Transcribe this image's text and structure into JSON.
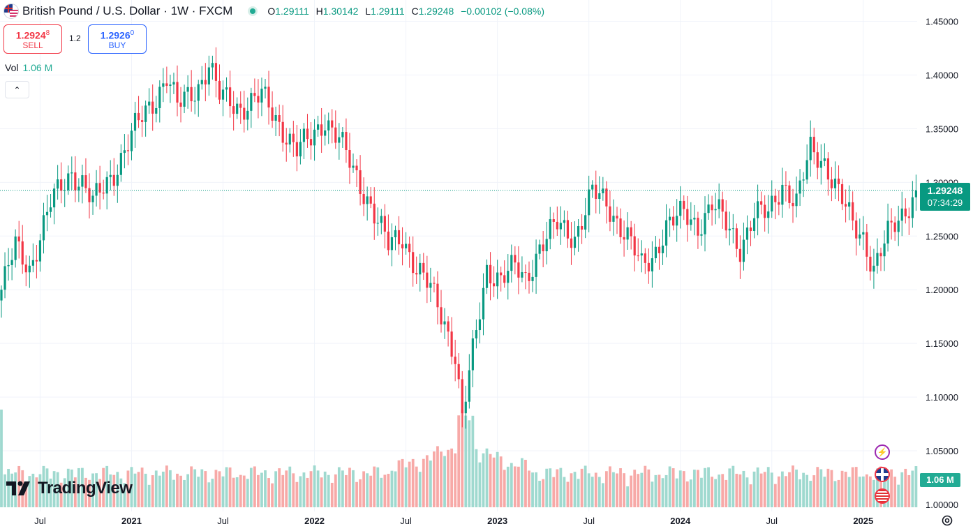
{
  "header": {
    "title": "British Pound / U.S. Dollar · 1W · FXCM",
    "ohlc": [
      {
        "label": "O",
        "value": "1.29111"
      },
      {
        "label": "H",
        "value": "1.30142"
      },
      {
        "label": "L",
        "value": "1.29111"
      },
      {
        "label": "C",
        "value": "1.29248"
      }
    ],
    "change": "−0.00102 (−0.08%)"
  },
  "trade": {
    "sell_price_main": "1.2924",
    "sell_price_sup": "8",
    "sell_label": "SELL",
    "spread": "1.2",
    "buy_price_main": "1.2926",
    "buy_price_sup": "0",
    "buy_label": "BUY"
  },
  "volume_legend": {
    "label": "Vol",
    "value": "1.06 M"
  },
  "collapse_glyph": "⌃",
  "logo_text": "TradingView",
  "last_price": {
    "price": "1.29248",
    "countdown": "07:34:29"
  },
  "last_volume": "1.06 M",
  "colors": {
    "up": "#089981",
    "down": "#f23645",
    "vol_up": "#9fd9cf",
    "vol_down": "#f7a9a7",
    "grid": "#f0f3fa"
  },
  "chart_data": {
    "type": "candlestick",
    "title": "British Pound / U.S. Dollar · 1W · FXCM",
    "y_ticks": [
      "1.45000",
      "1.40000",
      "1.35000",
      "1.30000",
      "1.25000",
      "1.20000",
      "1.15000",
      "1.10000",
      "1.05000",
      "1.00000"
    ],
    "ylim": [
      1.0,
      1.45
    ],
    "x_ticks": [
      {
        "label": "Jul",
        "bar": 11
      },
      {
        "label": "2021",
        "bar": 37
      },
      {
        "label": "Jul",
        "bar": 63
      },
      {
        "label": "2022",
        "bar": 89
      },
      {
        "label": "Jul",
        "bar": 115
      },
      {
        "label": "2023",
        "bar": 141
      },
      {
        "label": "Jul",
        "bar": 167
      },
      {
        "label": "2024",
        "bar": 193
      },
      {
        "label": "Jul",
        "bar": 219
      },
      {
        "label": "2025",
        "bar": 245
      }
    ],
    "bar_count": 261,
    "anchors": [
      [
        0,
        1.2
      ],
      [
        4,
        1.24
      ],
      [
        8,
        1.22
      ],
      [
        14,
        1.28
      ],
      [
        20,
        1.31
      ],
      [
        23,
        1.3
      ],
      [
        26,
        1.28
      ],
      [
        32,
        1.31
      ],
      [
        38,
        1.35
      ],
      [
        44,
        1.38
      ],
      [
        47,
        1.4
      ],
      [
        50,
        1.37
      ],
      [
        56,
        1.39
      ],
      [
        59,
        1.41
      ],
      [
        62,
        1.38
      ],
      [
        68,
        1.37
      ],
      [
        74,
        1.38
      ],
      [
        78,
        1.36
      ],
      [
        84,
        1.33
      ],
      [
        88,
        1.34
      ],
      [
        92,
        1.36
      ],
      [
        96,
        1.34
      ],
      [
        100,
        1.31
      ],
      [
        105,
        1.28
      ],
      [
        110,
        1.24
      ],
      [
        114,
        1.25
      ],
      [
        118,
        1.22
      ],
      [
        122,
        1.2
      ],
      [
        126,
        1.17
      ],
      [
        129,
        1.14
      ],
      [
        131,
        1.08
      ],
      [
        134,
        1.14
      ],
      [
        138,
        1.22
      ],
      [
        142,
        1.21
      ],
      [
        146,
        1.22
      ],
      [
        149,
        1.21
      ],
      [
        153,
        1.24
      ],
      [
        158,
        1.26
      ],
      [
        163,
        1.25
      ],
      [
        168,
        1.29
      ],
      [
        172,
        1.28
      ],
      [
        178,
        1.25
      ],
      [
        182,
        1.22
      ],
      [
        185,
        1.23
      ],
      [
        189,
        1.26
      ],
      [
        194,
        1.27
      ],
      [
        198,
        1.26
      ],
      [
        202,
        1.28
      ],
      [
        206,
        1.26
      ],
      [
        210,
        1.24
      ],
      [
        214,
        1.27
      ],
      [
        218,
        1.27
      ],
      [
        222,
        1.3
      ],
      [
        226,
        1.28
      ],
      [
        230,
        1.33
      ],
      [
        234,
        1.32
      ],
      [
        238,
        1.29
      ],
      [
        242,
        1.26
      ],
      [
        245,
        1.25
      ],
      [
        248,
        1.22
      ],
      [
        252,
        1.25
      ],
      [
        256,
        1.27
      ],
      [
        260,
        1.2925
      ]
    ],
    "volume_note": "relative weekly volume; spike in late 2022 around the 1.08 low"
  }
}
